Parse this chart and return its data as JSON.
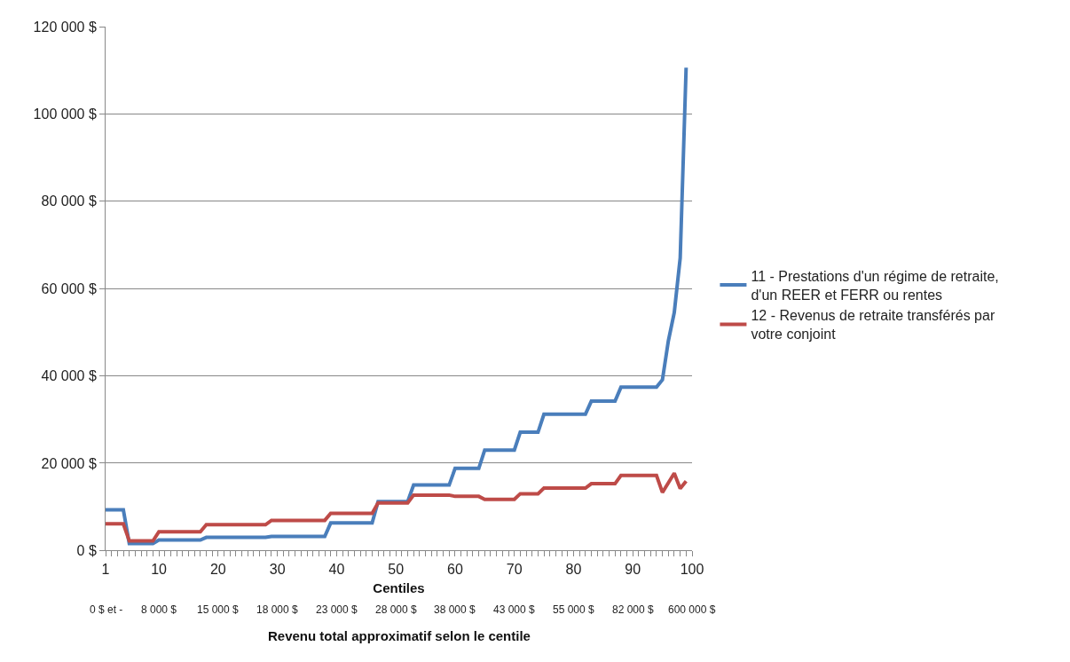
{
  "chart_data": {
    "type": "line",
    "xlabel": "Centiles",
    "x2label": "Revenu total approximatif selon le centile",
    "ylabel": null,
    "xlim": [
      1,
      100
    ],
    "xticks": [
      1,
      10,
      20,
      30,
      40,
      50,
      60,
      70,
      80,
      90,
      100
    ],
    "annotations": [
      "0 $ et -",
      "8 000 $",
      "15 000 $",
      "18 000 $",
      "23 000 $",
      "28 000 $",
      "38 000 $",
      "43 000 $",
      "55 000 $",
      "82 000 $",
      "600 000 $"
    ],
    "ylim": [
      0,
      120000
    ],
    "yticks": [
      {
        "value": 0,
        "label": "0 $"
      },
      {
        "value": 20000,
        "label": "20 000 $"
      },
      {
        "value": 40000,
        "label": "40 000 $"
      },
      {
        "value": 60000,
        "label": "60 000 $"
      },
      {
        "value": 80000,
        "label": "80 000 $"
      },
      {
        "value": 100000,
        "label": "100 000 $"
      },
      {
        "value": 120000,
        "label": "120 000 $"
      }
    ],
    "grid": "y",
    "legend": "right",
    "marker": "none",
    "line_style": "solid",
    "series": [
      {
        "name": "11 - Prestations d'un régime de retraite, d'un REER et FERR ou rentes",
        "color": "#4a7ebb",
        "x": [
          1,
          4,
          5,
          9,
          10,
          17,
          18,
          28,
          29,
          38,
          39,
          46,
          47,
          52,
          53,
          59,
          60,
          64,
          65,
          70,
          71,
          74,
          75,
          82,
          83,
          87,
          88,
          94,
          95,
          96,
          97,
          98,
          99
        ],
        "values": [
          9300,
          9300,
          1600,
          1600,
          2400,
          2400,
          3000,
          3000,
          3200,
          3200,
          6300,
          6300,
          11200,
          11200,
          15000,
          15000,
          18800,
          18800,
          23000,
          23000,
          27100,
          27100,
          31200,
          31200,
          34200,
          34200,
          37400,
          37400,
          39100,
          48000,
          54500,
          67000,
          110600
        ]
      },
      {
        "name": "12 - Revenus de retraite transférés par votre conjoint",
        "color": "#be4b48",
        "x": [
          1,
          4,
          5,
          9,
          10,
          17,
          18,
          28,
          29,
          38,
          39,
          46,
          47,
          52,
          53,
          59,
          60,
          64,
          65,
          70,
          71,
          74,
          75,
          82,
          83,
          87,
          88,
          94,
          95,
          97,
          98,
          99
        ],
        "values": [
          6100,
          6100,
          2200,
          2200,
          4300,
          4300,
          5900,
          5900,
          6900,
          6900,
          8500,
          8500,
          10900,
          10900,
          12700,
          12700,
          12400,
          12400,
          11700,
          11700,
          13000,
          13000,
          14300,
          14300,
          15300,
          15300,
          17200,
          17200,
          13300,
          17700,
          14200,
          15900
        ]
      }
    ]
  }
}
